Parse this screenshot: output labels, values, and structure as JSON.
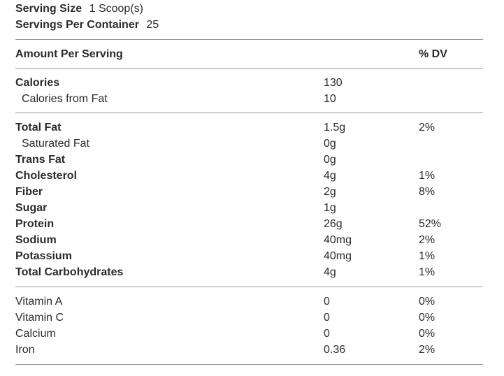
{
  "serving": {
    "size_label": "Serving Size",
    "size_value": "1 Scoop(s)",
    "per_container_label": "Servings Per Container",
    "per_container_value": "25"
  },
  "header": {
    "amount_label": "Amount Per Serving",
    "dv_label": "% DV"
  },
  "calories": [
    {
      "name": "Calories",
      "amount": "130",
      "dv": ""
    },
    {
      "name": "Calories from Fat",
      "amount": "10",
      "dv": ""
    }
  ],
  "nutrients": [
    {
      "name": "Total Fat",
      "amount": "1.5g",
      "dv": "2%"
    },
    {
      "name": "Saturated Fat",
      "amount": "0g",
      "dv": ""
    },
    {
      "name": "Trans Fat",
      "amount": "0g",
      "dv": ""
    },
    {
      "name": "Cholesterol",
      "amount": "4g",
      "dv": "1%"
    },
    {
      "name": "Fiber",
      "amount": "2g",
      "dv": "8%"
    },
    {
      "name": "Sugar",
      "amount": "1g",
      "dv": ""
    },
    {
      "name": "Protein",
      "amount": "26g",
      "dv": "52%"
    },
    {
      "name": "Sodium",
      "amount": "40mg",
      "dv": "2%"
    },
    {
      "name": "Potassium",
      "amount": "40mg",
      "dv": "1%"
    },
    {
      "name": "Total Carbohydrates",
      "amount": "4g",
      "dv": "1%"
    }
  ],
  "vitamins": [
    {
      "name": "Vitamin A",
      "amount": "0",
      "dv": "0%"
    },
    {
      "name": "Vitamin C",
      "amount": "0",
      "dv": "0%"
    },
    {
      "name": "Calcium",
      "amount": "0",
      "dv": "0%"
    },
    {
      "name": "Iron",
      "amount": "0.36",
      "dv": "2%"
    }
  ]
}
